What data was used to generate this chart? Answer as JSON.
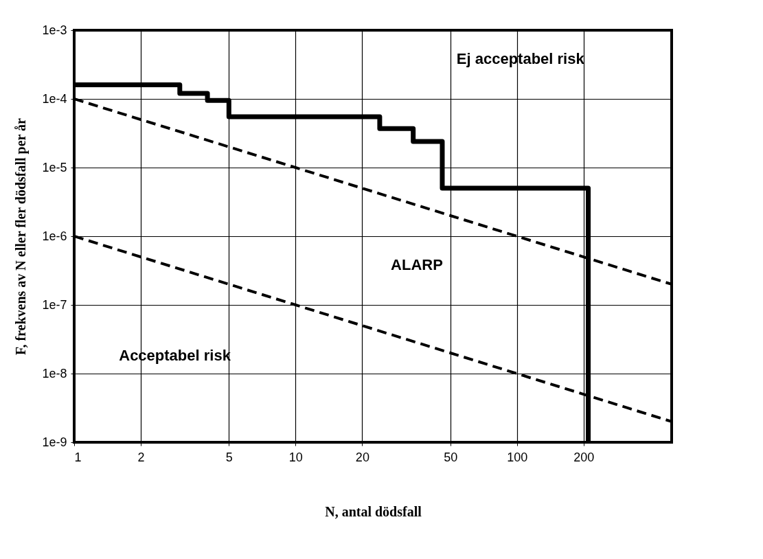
{
  "chart_data": {
    "type": "line",
    "xlabel": "N, antal dödsfall",
    "ylabel": "F, frekvens av N eller fler dödsfall per år",
    "log": "xy",
    "grid": true,
    "xlim": [
      1,
      500
    ],
    "xticks": [
      1,
      2,
      5,
      10,
      20,
      50,
      100,
      200
    ],
    "ylim": [
      1e-09,
      0.001
    ],
    "yticks": [
      {
        "value": 1e-09,
        "label": "1e-9"
      },
      {
        "value": 1e-08,
        "label": "1e-8"
      },
      {
        "value": 1e-07,
        "label": "1e-7"
      },
      {
        "value": 1e-06,
        "label": "1e-6"
      },
      {
        "value": 1e-05,
        "label": "1e-5"
      },
      {
        "value": 0.0001,
        "label": "1e-4"
      },
      {
        "value": 0.001,
        "label": "1e-3"
      }
    ],
    "series": [
      {
        "type": "step",
        "color": "#000000",
        "line_style": "solid",
        "x": [
          1,
          3,
          4,
          5,
          24,
          34,
          46,
          210
        ],
        "values": [
          0.00016,
          0.00012,
          9.5e-05,
          5.5e-05,
          3.7e-05,
          2.4e-05,
          5e-06,
          1e-09
        ]
      },
      {
        "type": "line",
        "color": "#000000",
        "line_style": "dashed",
        "x": [
          1,
          500
        ],
        "values": [
          0.0001,
          2e-07
        ]
      },
      {
        "type": "line",
        "color": "#000000",
        "line_style": "dashed",
        "x": [
          1,
          500
        ],
        "values": [
          1e-06,
          2e-09
        ]
      }
    ],
    "annotations": [
      "Ej acceptabel risk",
      "ALARP",
      "Acceptabel risk"
    ]
  }
}
